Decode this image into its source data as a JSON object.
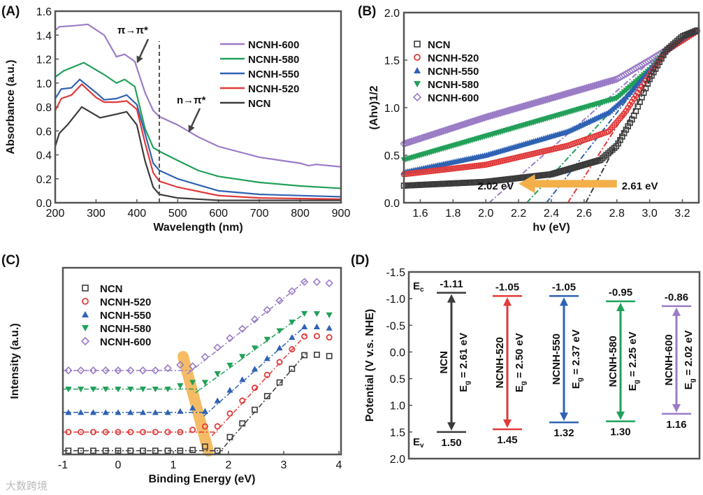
{
  "colors": {
    "NCN": "#3b3b3b",
    "NCNH-520": "#e03a3a",
    "NCNH-550": "#2f62b3",
    "NCNH-580": "#22a05a",
    "NCNH-600": "#9a7cc6",
    "highlight": "#f3b04a"
  },
  "watermark": "大数跨境",
  "chart_data": [
    {
      "panel": "(A)",
      "type": "line",
      "xlabel": "Wavelength (nm)",
      "ylabel": "Absorbance (a.u.)",
      "xlim": [
        200,
        900
      ],
      "ylim": [
        0,
        1.6
      ],
      "xticks": [
        200,
        300,
        400,
        500,
        600,
        700,
        800,
        900
      ],
      "yticks": [
        "0.0",
        "0.2",
        "0.4",
        "0.6",
        "0.8",
        "1.0",
        "1.2",
        "1.4",
        "1.6"
      ],
      "legend_position": "top-right",
      "marker_line_x": 455,
      "annotations": [
        "π→π*",
        "n→π*"
      ],
      "series": [
        {
          "name": "NCNH-600",
          "points": [
            [
              200,
              1.44
            ],
            [
              210,
              1.47
            ],
            [
              250,
              1.48
            ],
            [
              280,
              1.49
            ],
            [
              320,
              1.4
            ],
            [
              350,
              1.22
            ],
            [
              370,
              1.24
            ],
            [
              395,
              1.18
            ],
            [
              420,
              0.92
            ],
            [
              440,
              0.77
            ],
            [
              455,
              0.72
            ],
            [
              500,
              0.65
            ],
            [
              550,
              0.55
            ],
            [
              600,
              0.47
            ],
            [
              700,
              0.38
            ],
            [
              800,
              0.33
            ],
            [
              820,
              0.31
            ],
            [
              840,
              0.32
            ],
            [
              900,
              0.3
            ]
          ]
        },
        {
          "name": "NCNH-580",
          "points": [
            [
              200,
              1.05
            ],
            [
              220,
              1.1
            ],
            [
              270,
              1.17
            ],
            [
              320,
              1.07
            ],
            [
              350,
              1.0
            ],
            [
              370,
              1.03
            ],
            [
              395,
              0.97
            ],
            [
              420,
              0.62
            ],
            [
              440,
              0.46
            ],
            [
              455,
              0.43
            ],
            [
              490,
              0.37
            ],
            [
              550,
              0.27
            ],
            [
              600,
              0.22
            ],
            [
              700,
              0.17
            ],
            [
              800,
              0.14
            ],
            [
              900,
              0.12
            ]
          ]
        },
        {
          "name": "NCNH-550",
          "points": [
            [
              200,
              0.87
            ],
            [
              215,
              0.95
            ],
            [
              240,
              0.96
            ],
            [
              260,
              1.03
            ],
            [
              300,
              0.92
            ],
            [
              320,
              0.86
            ],
            [
              350,
              0.87
            ],
            [
              375,
              0.9
            ],
            [
              400,
              0.82
            ],
            [
              420,
              0.58
            ],
            [
              440,
              0.33
            ],
            [
              455,
              0.27
            ],
            [
              500,
              0.2
            ],
            [
              600,
              0.1
            ],
            [
              700,
              0.07
            ],
            [
              900,
              0.05
            ]
          ]
        },
        {
          "name": "NCNH-520",
          "points": [
            [
              200,
              0.77
            ],
            [
              215,
              0.87
            ],
            [
              240,
              0.9
            ],
            [
              265,
              0.99
            ],
            [
              300,
              0.88
            ],
            [
              320,
              0.84
            ],
            [
              350,
              0.84
            ],
            [
              375,
              0.85
            ],
            [
              400,
              0.78
            ],
            [
              420,
              0.5
            ],
            [
              440,
              0.25
            ],
            [
              455,
              0.18
            ],
            [
              500,
              0.13
            ],
            [
              600,
              0.06
            ],
            [
              700,
              0.04
            ],
            [
              900,
              0.03
            ]
          ]
        },
        {
          "name": "NCN",
          "points": [
            [
              200,
              0.47
            ],
            [
              210,
              0.58
            ],
            [
              230,
              0.65
            ],
            [
              265,
              0.8
            ],
            [
              310,
              0.71
            ],
            [
              350,
              0.74
            ],
            [
              375,
              0.76
            ],
            [
              400,
              0.65
            ],
            [
              420,
              0.35
            ],
            [
              440,
              0.13
            ],
            [
              455,
              0.07
            ],
            [
              500,
              0.04
            ],
            [
              600,
              0.02
            ],
            [
              900,
              0.02
            ]
          ]
        }
      ]
    },
    {
      "panel": "(B)",
      "type": "scatter",
      "xlabel": "hν (eV)",
      "ylabel": "(Ahν)1/2",
      "xlim": [
        1.5,
        3.3
      ],
      "ylim": [
        0,
        2.0
      ],
      "xticks": [
        "1.6",
        "1.8",
        "2.0",
        "2.2",
        "2.4",
        "2.6",
        "2.8",
        "3.0",
        "3.2"
      ],
      "yticks": [
        "0.0",
        "0.5",
        "1.0",
        "1.5",
        "2.0"
      ],
      "legend_position": "top-left",
      "arrow_labels": [
        "2.02 eV",
        "2.61 eV"
      ],
      "series": [
        {
          "name": "NCN",
          "marker": "square",
          "bandgap": 2.61,
          "points": [
            [
              1.5,
              0.18
            ],
            [
              2.0,
              0.22
            ],
            [
              2.4,
              0.3
            ],
            [
              2.7,
              0.45
            ],
            [
              2.8,
              0.6
            ],
            [
              2.9,
              0.9
            ],
            [
              3.0,
              1.3
            ],
            [
              3.1,
              1.6
            ],
            [
              3.2,
              1.75
            ],
            [
              3.3,
              1.82
            ]
          ]
        },
        {
          "name": "NCNH-520",
          "marker": "circle",
          "bandgap": 2.5,
          "points": [
            [
              1.5,
              0.3
            ],
            [
              2.0,
              0.4
            ],
            [
              2.5,
              0.6
            ],
            [
              2.75,
              0.75
            ],
            [
              2.85,
              0.95
            ],
            [
              3.0,
              1.35
            ],
            [
              3.1,
              1.6
            ],
            [
              3.3,
              1.82
            ]
          ]
        },
        {
          "name": "NCNH-550",
          "marker": "triangle-up",
          "bandgap": 2.37,
          "points": [
            [
              1.5,
              0.32
            ],
            [
              2.0,
              0.5
            ],
            [
              2.5,
              0.75
            ],
            [
              2.75,
              0.95
            ],
            [
              2.85,
              1.1
            ],
            [
              3.0,
              1.4
            ],
            [
              3.1,
              1.6
            ],
            [
              3.3,
              1.82
            ]
          ]
        },
        {
          "name": "NCNH-580",
          "marker": "triangle-down",
          "bandgap": 2.25,
          "points": [
            [
              1.5,
              0.45
            ],
            [
              2.0,
              0.7
            ],
            [
              2.5,
              0.95
            ],
            [
              2.8,
              1.1
            ],
            [
              3.0,
              1.4
            ],
            [
              3.1,
              1.6
            ],
            [
              3.3,
              1.82
            ]
          ]
        },
        {
          "name": "NCNH-600",
          "marker": "diamond",
          "bandgap": 2.02,
          "points": [
            [
              1.5,
              0.62
            ],
            [
              2.0,
              0.9
            ],
            [
              2.5,
              1.15
            ],
            [
              2.8,
              1.3
            ],
            [
              3.0,
              1.5
            ],
            [
              3.3,
              1.82
            ]
          ]
        }
      ]
    },
    {
      "panel": "(C)",
      "type": "scatter",
      "xlabel": "Binding Energy (eV)",
      "ylabel": "Intensity (a.u.)",
      "xlim": [
        -1,
        4
      ],
      "ylim": [
        0,
        10
      ],
      "xticks": [
        "-1",
        "0",
        "1",
        "2",
        "3",
        "4"
      ],
      "legend_position": "top-left",
      "series": [
        {
          "name": "NCN",
          "marker": "square",
          "baseline": 0.2,
          "onset": 1.8,
          "top": 5.4
        },
        {
          "name": "NCNH-520",
          "marker": "circle",
          "baseline": 1.2,
          "onset": 1.7,
          "top": 6.4
        },
        {
          "name": "NCNH-550",
          "marker": "triangle-up",
          "baseline": 2.25,
          "onset": 1.55,
          "top": 6.9
        },
        {
          "name": "NCNH-580",
          "marker": "triangle-down",
          "baseline": 3.5,
          "onset": 1.4,
          "top": 7.6
        },
        {
          "name": "NCNH-600",
          "marker": "diamond",
          "baseline": 4.5,
          "onset": 1.25,
          "top": 9.3
        }
      ]
    },
    {
      "panel": "(D)",
      "type": "band-diagram",
      "ylabel": "Potential (V v.s. NHE)",
      "ylim": [
        -1.5,
        2.0
      ],
      "yticks": [
        "-1.5",
        "-1.0",
        "-0.5",
        "0.0",
        "0.5",
        "1.0",
        "1.5",
        "2.0"
      ],
      "ec_label": "E",
      "ec_sub": "c",
      "ev_label": "E",
      "ev_sub": "v",
      "bands": [
        {
          "name": "NCN",
          "cb": -1.11,
          "vb": 1.5,
          "cb_label": "-1.11",
          "vb_label": "1.50",
          "eg_label": "E",
          "eg_sub": "g",
          "eg_value": " = 2.61 eV"
        },
        {
          "name": "NCNH-520",
          "cb": -1.05,
          "vb": 1.45,
          "cb_label": "-1.05",
          "vb_label": "1.45",
          "eg_label": "E",
          "eg_sub": "g",
          "eg_value": " = 2.50 eV"
        },
        {
          "name": "NCNH-550",
          "cb": -1.05,
          "vb": 1.32,
          "cb_label": "-1.05",
          "vb_label": "1.32",
          "eg_label": "E",
          "eg_sub": "g",
          "eg_value": " = 2.37 eV"
        },
        {
          "name": "NCNH-580",
          "cb": -0.95,
          "vb": 1.3,
          "cb_label": "-0.95",
          "vb_label": "1.30",
          "eg_label": "E",
          "eg_sub": "g",
          "eg_value": " = 2.25 eV"
        },
        {
          "name": "NCNH-600",
          "cb": -0.86,
          "vb": 1.16,
          "cb_label": "-0.86",
          "vb_label": "1.16",
          "eg_label": "E",
          "eg_sub": "g",
          "eg_value": " = 2.02 eV"
        }
      ]
    }
  ]
}
